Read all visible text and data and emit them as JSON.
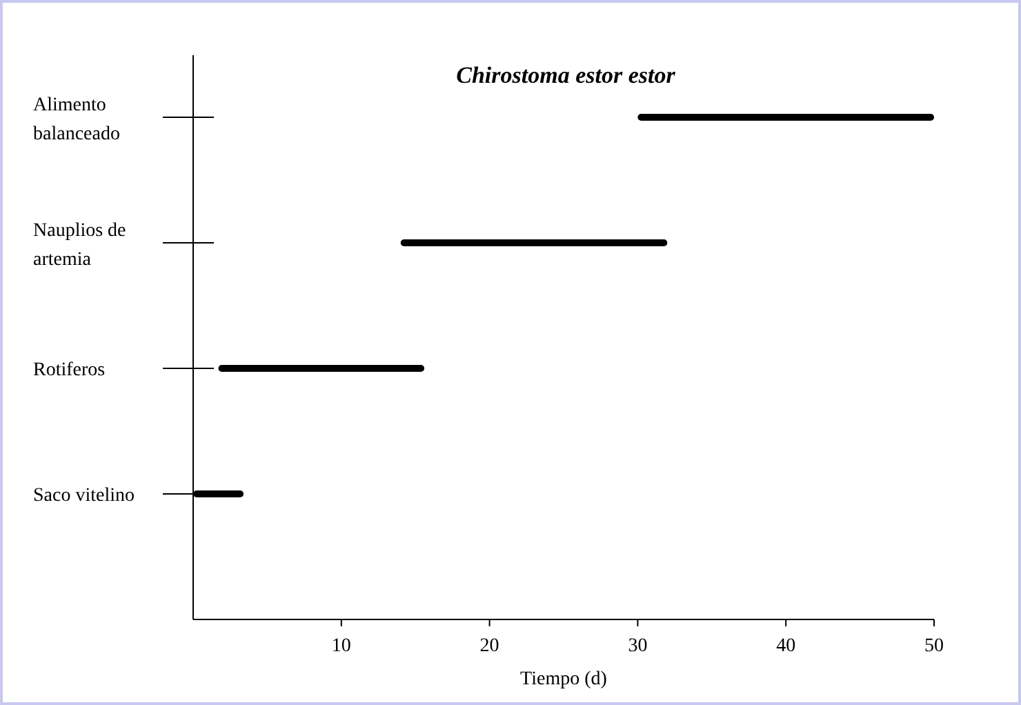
{
  "chart_data": {
    "type": "bar",
    "orientation": "horizontal",
    "title": "Chirostoma estor estor",
    "xlabel": "Tiempo (d)",
    "categories": [
      "Alimento balanceado",
      "Nauplios de artemia",
      "Rotiferos",
      "Saco vitelino"
    ],
    "base": [
      30,
      14,
      1.7,
      0
    ],
    "values": [
      20,
      18,
      13.9,
      3.4
    ],
    "color": "#000000",
    "xlim": [
      0,
      50
    ],
    "xticks": [
      10,
      20,
      30,
      40,
      50
    ]
  }
}
